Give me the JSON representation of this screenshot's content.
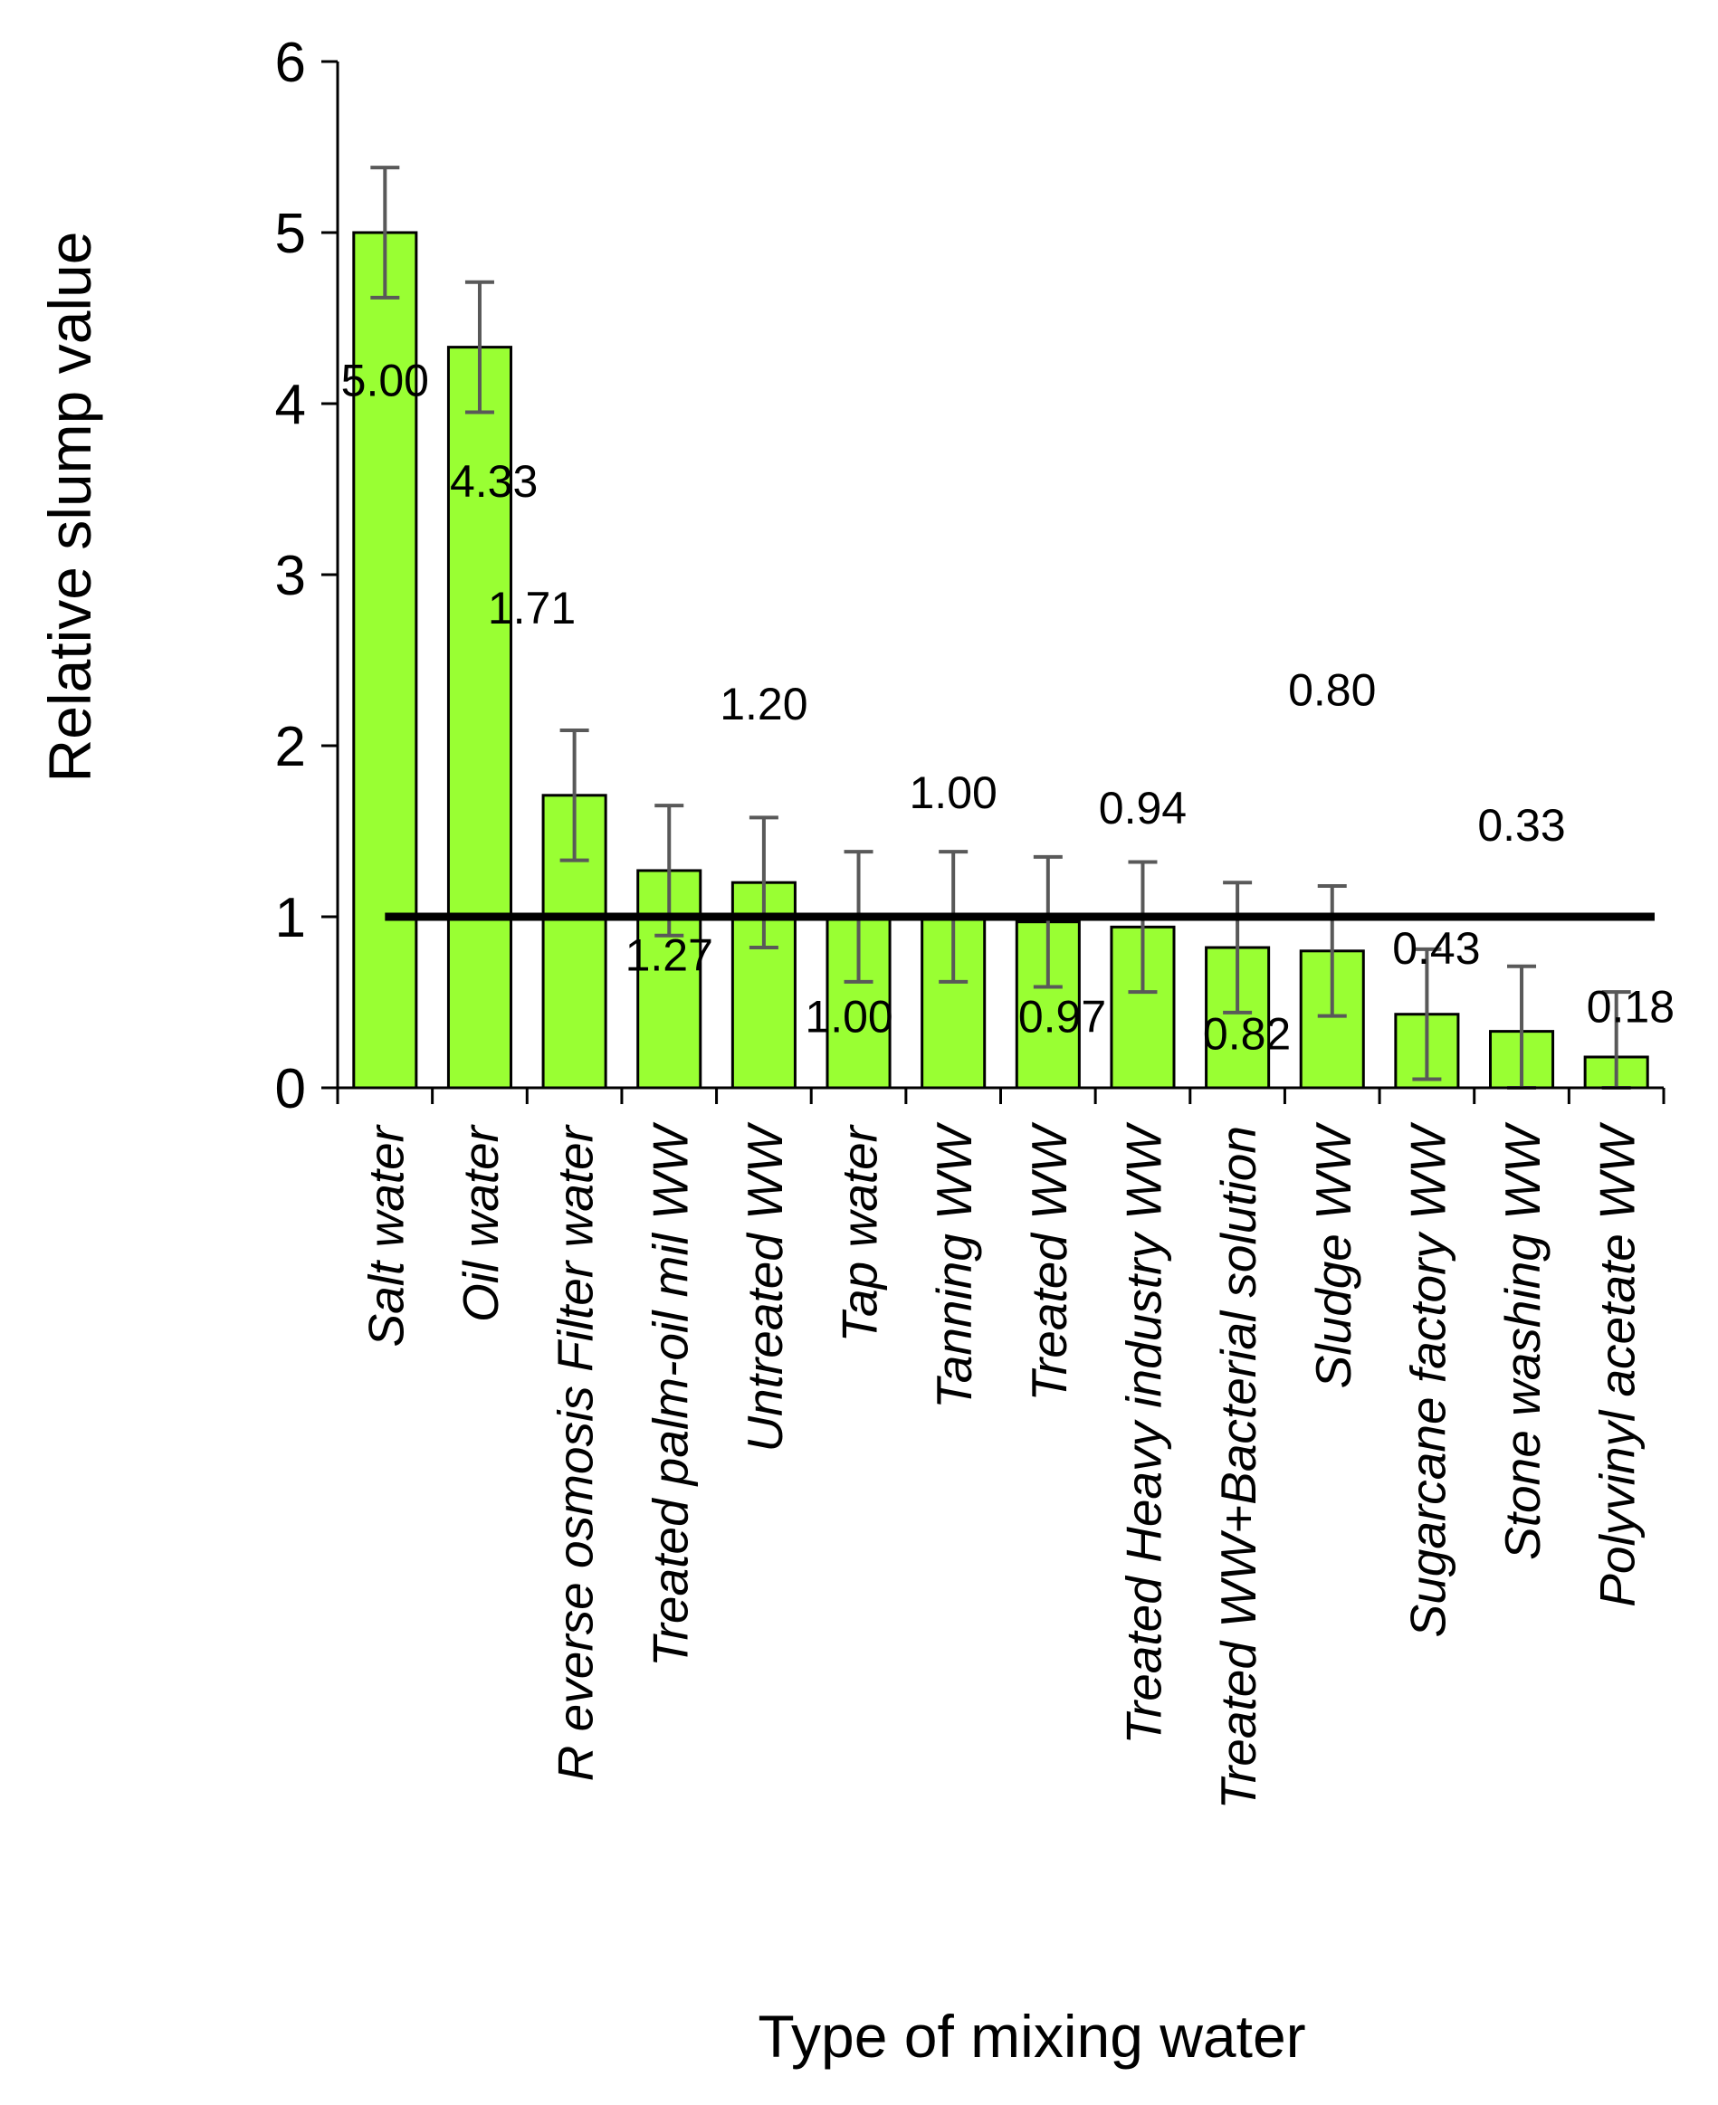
{
  "chart_data": {
    "type": "bar",
    "title": "",
    "xlabel": "Type of mixing water",
    "ylabel": "Relative slump value",
    "ylim": [
      0,
      6
    ],
    "yticks": [
      0,
      1,
      2,
      3,
      4,
      5,
      6
    ],
    "grid": false,
    "legend": "none",
    "bar_color": "#99ff33",
    "categories": [
      "Salt water",
      "Oil water",
      "R everse osmosis Filter water",
      "Treated palm-oil mil WW",
      "Untreated WW",
      "Tap water",
      "Tanning WW",
      "Treated WW",
      "Treated Heavy industry WW",
      "Treated WW+Bacterial solution",
      "Sludge WW",
      "Sugarcane factory WW",
      "Stone washing WW",
      "Polyvinyl acetate WW"
    ],
    "values": [
      5.0,
      4.33,
      1.71,
      1.27,
      1.2,
      1.0,
      1.0,
      0.97,
      0.94,
      0.82,
      0.8,
      0.43,
      0.33,
      0.18
    ],
    "data_labels": [
      "5.00",
      "4.33",
      "1.71",
      "1.27",
      "1.20",
      "1.00",
      "1.00",
      "0.97",
      "0.94",
      "0.82",
      "0.80",
      "0.43",
      "0.33",
      "0.18"
    ],
    "error_bars": [
      0.38,
      0.38,
      0.38,
      0.38,
      0.38,
      0.38,
      0.38,
      0.38,
      0.38,
      0.38,
      0.38,
      0.38,
      0.38,
      0.38
    ],
    "reference_line": {
      "y": 1.0
    }
  }
}
